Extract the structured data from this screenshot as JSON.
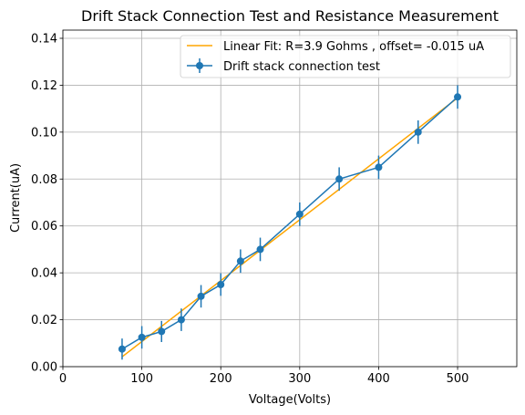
{
  "chart_data": {
    "type": "line",
    "title": "Drift Stack Connection Test and Resistance Measurement",
    "xlabel": "Voltage(Volts)",
    "ylabel": "Current(uA)",
    "xlim": [
      0,
      575
    ],
    "ylim": [
      0,
      0.1435
    ],
    "xticks": [
      0,
      100,
      200,
      300,
      400,
      500
    ],
    "xtick_labels": [
      "0",
      "100",
      "200",
      "300",
      "400",
      "500"
    ],
    "yticks": [
      0.0,
      0.02,
      0.04,
      0.06,
      0.08,
      0.1,
      0.12,
      0.14
    ],
    "ytick_labels": [
      "0.00",
      "0.02",
      "0.04",
      "0.06",
      "0.08",
      "0.10",
      "0.12",
      "0.14"
    ],
    "grid": true,
    "legend_position": "top-right",
    "series": [
      {
        "name": "Linear Fit: R=3.9 Gohms , offset= -0.015 uA",
        "kind": "line",
        "color": "#ffa500",
        "x": [
          75,
          500
        ],
        "y": [
          0.0042,
          0.1146
        ]
      },
      {
        "name": "Drift stack connection test",
        "kind": "errorbar",
        "color": "#1f77b4",
        "marker": "circle",
        "x": [
          75,
          100,
          125,
          150,
          175,
          200,
          225,
          250,
          300,
          350,
          400,
          450,
          500
        ],
        "y": [
          0.0075,
          0.0125,
          0.015,
          0.02,
          0.03,
          0.035,
          0.045,
          0.05,
          0.065,
          0.08,
          0.085,
          0.1,
          0.115
        ],
        "yerr": [
          0.0045,
          0.0048,
          0.0045,
          0.0048,
          0.0048,
          0.0048,
          0.005,
          0.005,
          0.005,
          0.005,
          0.005,
          0.005,
          0.005
        ]
      }
    ]
  }
}
